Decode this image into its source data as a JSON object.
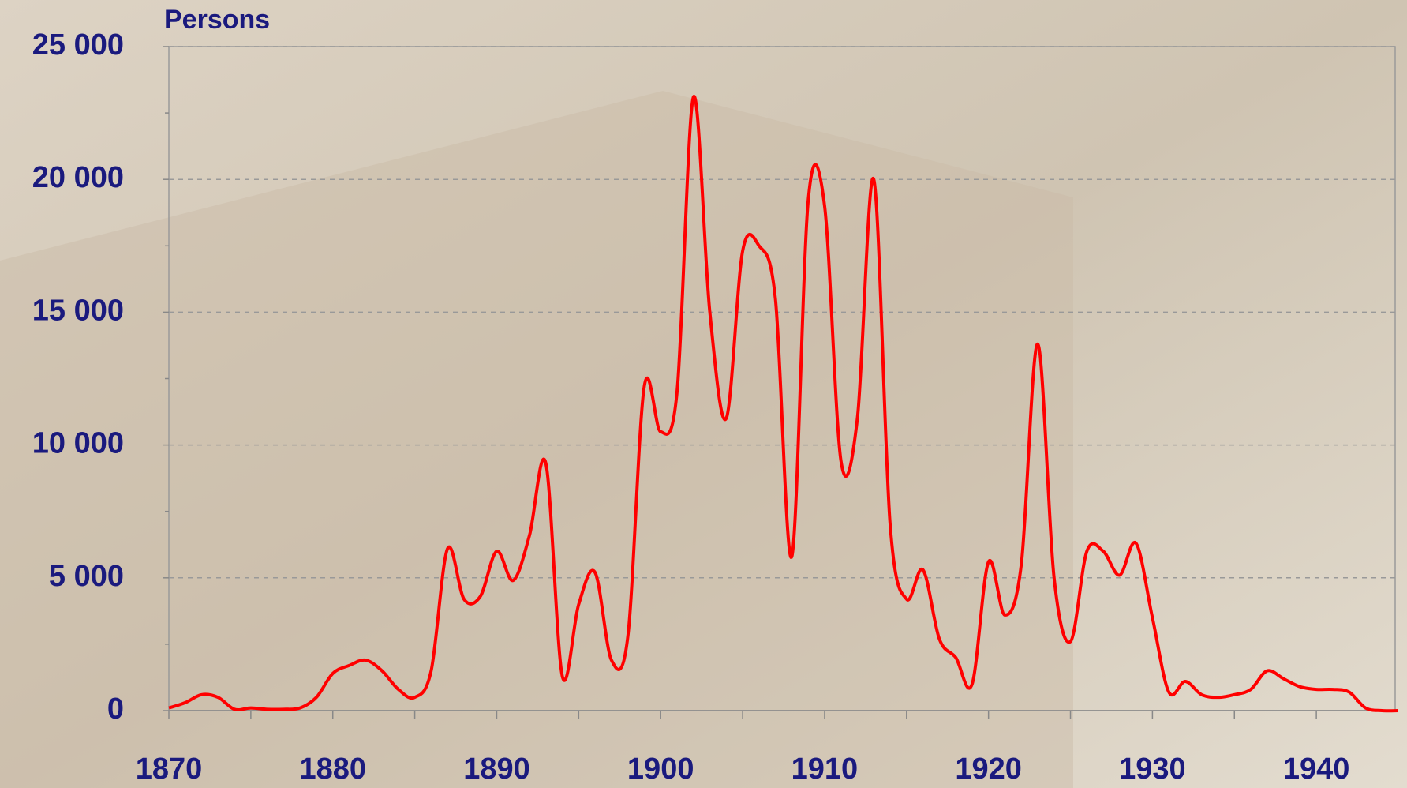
{
  "chart_data": {
    "type": "line",
    "y_label": "Persons",
    "x": [
      1870,
      1871,
      1872,
      1873,
      1874,
      1875,
      1876,
      1877,
      1878,
      1879,
      1880,
      1881,
      1882,
      1883,
      1884,
      1885,
      1886,
      1887,
      1888,
      1889,
      1890,
      1891,
      1892,
      1893,
      1894,
      1895,
      1896,
      1897,
      1898,
      1899,
      1900,
      1901,
      1902,
      1903,
      1904,
      1905,
      1906,
      1907,
      1908,
      1909,
      1910,
      1911,
      1912,
      1913,
      1914,
      1915,
      1916,
      1917,
      1918,
      1919,
      1920,
      1921,
      1922,
      1923,
      1924,
      1925,
      1926,
      1927,
      1928,
      1929,
      1930,
      1931,
      1932,
      1933,
      1934,
      1935,
      1936,
      1937,
      1938,
      1939,
      1940,
      1941,
      1942,
      1943,
      1944,
      1945
    ],
    "series": [
      {
        "color": "#ff0000",
        "values": [
          100,
          300,
          600,
          500,
          50,
          100,
          50,
          50,
          100,
          500,
          1400,
          1700,
          1900,
          1500,
          800,
          500,
          1500,
          6100,
          4200,
          4300,
          6000,
          4900,
          6600,
          9300,
          1300,
          4000,
          5200,
          1900,
          2800,
          12200,
          10500,
          12000,
          23100,
          15000,
          11000,
          17300,
          17500,
          15500,
          5800,
          19200,
          19000,
          9400,
          11000,
          20000,
          7000,
          4200,
          5300,
          2700,
          2000,
          1000,
          5600,
          3600,
          5500,
          13800,
          5000,
          2600,
          6000,
          6000,
          5100,
          6300,
          3500,
          700,
          1100,
          600,
          500,
          600,
          800,
          1500,
          1200,
          900,
          800,
          800,
          700,
          100,
          0,
          0
        ]
      }
    ],
    "xlim": [
      1870,
      1945
    ],
    "xticks": [
      1870,
      1880,
      1890,
      1900,
      1910,
      1920,
      1930,
      1940
    ],
    "ylim": [
      0,
      25000
    ],
    "yticks": [
      0,
      {
        "value": 5000,
        "label": "5 000"
      },
      {
        "value": 10000,
        "label": "10 000"
      },
      {
        "value": 15000,
        "label": "15 000"
      },
      {
        "value": 20000,
        "label": "20 000"
      },
      {
        "value": 25000,
        "label": "25 000"
      }
    ],
    "grid": true
  }
}
